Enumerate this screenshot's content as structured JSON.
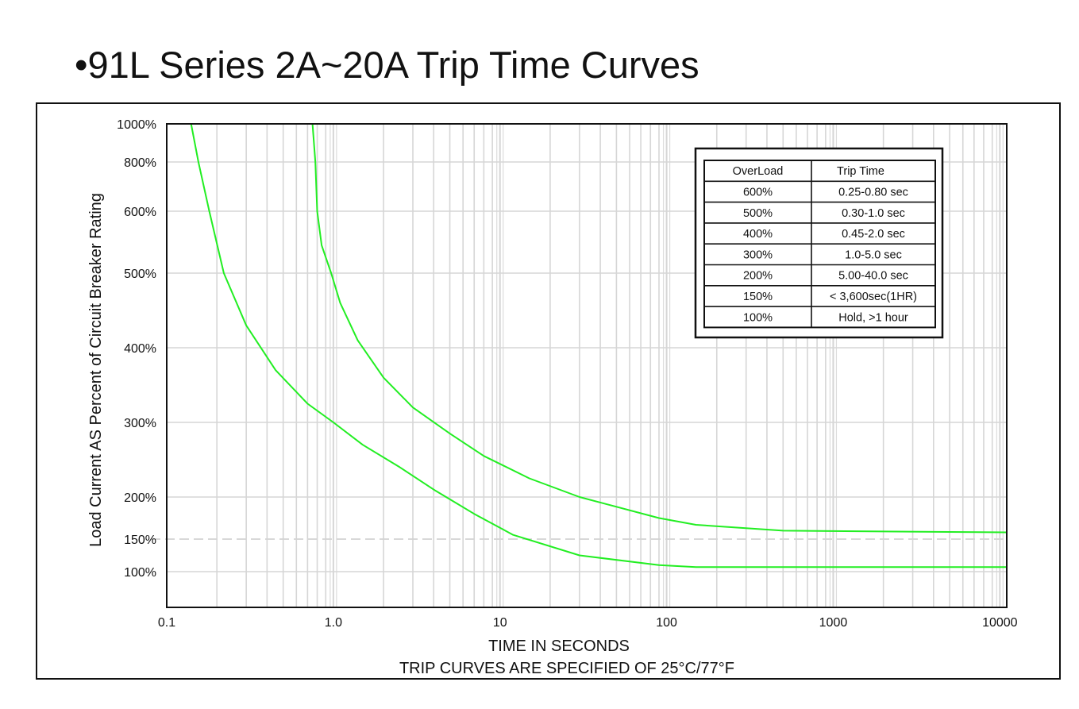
{
  "page": {
    "title": "•91L Series 2A~20A Trip Time Curves"
  },
  "chart_data": {
    "type": "line",
    "title": "•91L Series 2A~20A Trip Time Curves",
    "xlabel": "TIME IN SECONDS",
    "subtitle": "TRIP CURVES ARE SPECIFIED OF 25°C/77°F",
    "ylabel": "Load Current AS Percent of Circuit Breaker Rating",
    "x_scale": "log",
    "xlim": [
      0.1,
      11000
    ],
    "x_ticks": [
      {
        "value": 0.1,
        "label": "0.1"
      },
      {
        "value": 1,
        "label": "1.0"
      },
      {
        "value": 10,
        "label": "10"
      },
      {
        "value": 100,
        "label": "100"
      },
      {
        "value": 1000,
        "label": "1000"
      },
      {
        "value": 10000,
        "label": "10000"
      }
    ],
    "y_ticks": [
      {
        "value": 1000,
        "label": "1000%"
      },
      {
        "value": 800,
        "label": "800%"
      },
      {
        "value": 600,
        "label": "600%"
      },
      {
        "value": 500,
        "label": "500%"
      },
      {
        "value": 400,
        "label": "400%"
      },
      {
        "value": 300,
        "label": "300%"
      },
      {
        "value": 200,
        "label": "200%"
      },
      {
        "value": 150,
        "label": "150%"
      },
      {
        "value": 100,
        "label": "100%"
      }
    ],
    "grid": true,
    "reference_line": {
      "y": 150,
      "style": "dashed"
    },
    "line_color": "#22ee22",
    "series": [
      {
        "points": [
          [
            0.14,
            1000
          ],
          [
            0.155,
            800
          ],
          [
            0.18,
            600
          ],
          [
            0.22,
            500
          ],
          [
            0.3,
            430
          ],
          [
            0.45,
            370
          ],
          [
            0.7,
            325
          ],
          [
            1.0,
            300
          ],
          [
            1.5,
            270
          ],
          [
            2.5,
            240
          ],
          [
            4,
            210
          ],
          [
            7,
            180
          ],
          [
            12,
            155
          ],
          [
            30,
            125
          ],
          [
            90,
            110
          ],
          [
            150,
            107
          ],
          [
            1000,
            107
          ],
          [
            11000,
            107
          ]
        ]
      },
      {
        "points": [
          [
            0.75,
            1000
          ],
          [
            0.78,
            800
          ],
          [
            0.8,
            600
          ],
          [
            0.85,
            545
          ],
          [
            0.97,
            500
          ],
          [
            1.1,
            460
          ],
          [
            1.4,
            410
          ],
          [
            2,
            360
          ],
          [
            3,
            320
          ],
          [
            5,
            285
          ],
          [
            8,
            255
          ],
          [
            15,
            225
          ],
          [
            30,
            200
          ],
          [
            90,
            175
          ],
          [
            150,
            167
          ],
          [
            500,
            160
          ],
          [
            11000,
            158
          ]
        ]
      }
    ],
    "legend_table": {
      "headers": [
        "OverLoad",
        "Trip Time"
      ],
      "rows": [
        [
          "600%",
          "0.25-0.80 sec"
        ],
        [
          "500%",
          "0.30-1.0 sec"
        ],
        [
          "400%",
          "0.45-2.0 sec"
        ],
        [
          "300%",
          "1.0-5.0 sec"
        ],
        [
          "200%",
          "5.00-40.0 sec"
        ],
        [
          "150%",
          "< 3,600sec(1HR)"
        ],
        [
          "100%",
          "Hold, >1 hour"
        ]
      ]
    }
  }
}
